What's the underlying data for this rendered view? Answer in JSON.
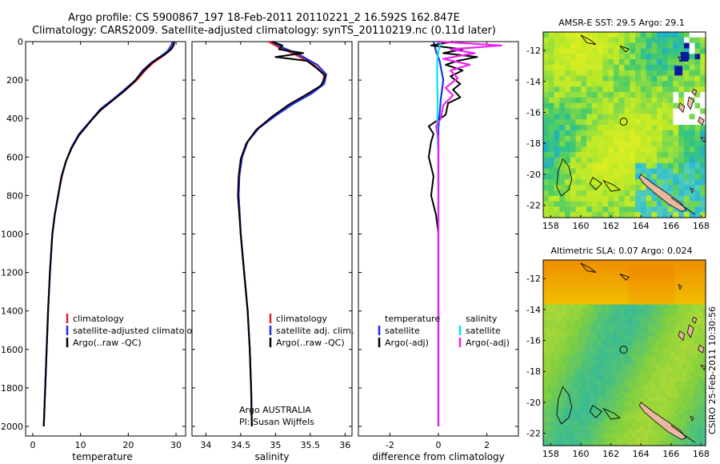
{
  "title": {
    "line1": "Argo profile: CS 5900867_197 18-Feb-2011 20110221_2 16.592S 162.847E",
    "line2": "Climatology: CARS2009. Satellite-adjusted climatology: synTS_20110219.nc (0.11d later)"
  },
  "colors": {
    "climatology": "#e02020",
    "satellite": "#1f2fe0",
    "argo": "#000000",
    "cyan": "#00e5ee",
    "magenta": "#ee22ee",
    "land": "#e8b8a0"
  },
  "chart_data": [
    {
      "type": "line",
      "xlabel": "temperature",
      "ylim": [
        2050,
        0
      ],
      "xlim": [
        -1.5,
        32
      ],
      "xticks": [
        0,
        10,
        20,
        30
      ],
      "yticks": [
        0,
        200,
        400,
        600,
        800,
        1000,
        1200,
        1400,
        1600,
        1800,
        2000
      ],
      "legend_placement": "lower-middle",
      "series": [
        {
          "name": "climatology",
          "color": "#e02020",
          "points": [
            [
              29.5,
              0
            ],
            [
              29.3,
              20
            ],
            [
              28.5,
              50
            ],
            [
              27.0,
              80
            ],
            [
              25.2,
              110
            ],
            [
              23.5,
              150
            ],
            [
              21.8,
              200
            ],
            [
              19.5,
              250
            ],
            [
              17.0,
              300
            ],
            [
              14.5,
              350
            ],
            [
              11.8,
              420
            ],
            [
              9.8,
              480
            ],
            [
              8.2,
              550
            ],
            [
              7.0,
              620
            ],
            [
              6.1,
              700
            ],
            [
              5.3,
              800
            ],
            [
              4.6,
              900
            ],
            [
              4.1,
              1000
            ],
            [
              3.6,
              1200
            ],
            [
              3.2,
              1400
            ],
            [
              2.9,
              1600
            ],
            [
              2.6,
              1800
            ],
            [
              2.3,
              2000
            ]
          ]
        },
        {
          "name": "satellite-adjusted climatology",
          "color": "#1f2fe0",
          "points": [
            [
              29.3,
              0
            ],
            [
              29.0,
              20
            ],
            [
              28.2,
              50
            ],
            [
              26.6,
              80
            ],
            [
              24.8,
              110
            ],
            [
              23.0,
              150
            ],
            [
              21.5,
              200
            ],
            [
              19.2,
              250
            ],
            [
              16.8,
              300
            ],
            [
              14.2,
              350
            ],
            [
              11.8,
              420
            ],
            [
              9.7,
              480
            ],
            [
              8.1,
              550
            ],
            [
              7.0,
              620
            ],
            [
              6.0,
              700
            ],
            [
              5.3,
              800
            ],
            [
              4.6,
              900
            ],
            [
              4.1,
              1000
            ],
            [
              3.6,
              1200
            ],
            [
              3.2,
              1400
            ],
            [
              2.9,
              1600
            ],
            [
              2.6,
              1800
            ],
            [
              2.3,
              2000
            ]
          ]
        },
        {
          "name": "Argo(..raw -QC)",
          "color": "#000000",
          "points": [
            [
              29.6,
              0
            ],
            [
              29.5,
              20
            ],
            [
              29.0,
              40
            ],
            [
              27.5,
              70
            ],
            [
              26.0,
              90
            ],
            [
              24.5,
              120
            ],
            [
              22.9,
              160
            ],
            [
              21.2,
              210
            ],
            [
              19.0,
              260
            ],
            [
              16.5,
              310
            ],
            [
              14.0,
              360
            ],
            [
              11.6,
              430
            ],
            [
              9.6,
              490
            ],
            [
              8.1,
              555
            ],
            [
              6.9,
              625
            ],
            [
              6.0,
              705
            ],
            [
              5.3,
              805
            ],
            [
              4.6,
              905
            ],
            [
              4.1,
              1005
            ],
            [
              3.6,
              1200
            ],
            [
              3.2,
              1400
            ],
            [
              2.9,
              1600
            ],
            [
              2.6,
              1800
            ],
            [
              2.3,
              2000
            ]
          ]
        }
      ]
    },
    {
      "type": "line",
      "xlabel": "salinity",
      "ylim": [
        2050,
        0
      ],
      "xlim": [
        33.8,
        36.1
      ],
      "xticks": [
        34,
        34.5,
        35,
        35.5,
        36
      ],
      "legend_placement": "lower-middle",
      "annotation": [
        "Argo AUSTRALIA",
        "PI: Susan Wijffels"
      ],
      "series": [
        {
          "name": "climatology",
          "color": "#e02020",
          "points": [
            [
              34.9,
              0
            ],
            [
              35.05,
              30
            ],
            [
              35.3,
              70
            ],
            [
              35.55,
              120
            ],
            [
              35.7,
              170
            ],
            [
              35.68,
              220
            ],
            [
              35.5,
              270
            ],
            [
              35.25,
              320
            ],
            [
              35.0,
              380
            ],
            [
              34.75,
              450
            ],
            [
              34.6,
              520
            ],
            [
              34.52,
              600
            ],
            [
              34.48,
              700
            ],
            [
              34.47,
              800
            ],
            [
              34.5,
              1000
            ],
            [
              34.55,
              1200
            ],
            [
              34.6,
              1400
            ],
            [
              34.63,
              1600
            ],
            [
              34.65,
              1800
            ],
            [
              34.66,
              2000
            ]
          ]
        },
        {
          "name": "satellite adj. clim.",
          "color": "#1f2fe0",
          "points": [
            [
              34.95,
              0
            ],
            [
              35.1,
              30
            ],
            [
              35.35,
              70
            ],
            [
              35.6,
              120
            ],
            [
              35.73,
              170
            ],
            [
              35.7,
              220
            ],
            [
              35.52,
              270
            ],
            [
              35.27,
              320
            ],
            [
              35.02,
              380
            ],
            [
              34.76,
              450
            ],
            [
              34.6,
              520
            ],
            [
              34.52,
              600
            ],
            [
              34.48,
              700
            ],
            [
              34.47,
              800
            ],
            [
              34.5,
              1000
            ],
            [
              34.55,
              1200
            ],
            [
              34.6,
              1400
            ],
            [
              34.63,
              1600
            ],
            [
              34.65,
              1800
            ],
            [
              34.66,
              2000
            ]
          ]
        },
        {
          "name": "Argo(..raw -QC)",
          "color": "#000000",
          "points": [
            [
              34.95,
              0
            ],
            [
              35.1,
              20
            ],
            [
              35.05,
              40
            ],
            [
              35.4,
              60
            ],
            [
              35.0,
              80
            ],
            [
              35.45,
              100
            ],
            [
              35.6,
              140
            ],
            [
              35.72,
              180
            ],
            [
              35.65,
              230
            ],
            [
              35.42,
              280
            ],
            [
              35.18,
              330
            ],
            [
              34.95,
              390
            ],
            [
              34.72,
              460
            ],
            [
              34.58,
              530
            ],
            [
              34.5,
              610
            ],
            [
              34.47,
              700
            ],
            [
              34.46,
              800
            ],
            [
              34.5,
              1000
            ],
            [
              34.55,
              1200
            ],
            [
              34.6,
              1400
            ],
            [
              34.63,
              1600
            ],
            [
              34.65,
              1800
            ],
            [
              34.66,
              2000
            ]
          ]
        }
      ]
    },
    {
      "type": "line",
      "xlabel": "difference from climatology",
      "ylim": [
        2050,
        0
      ],
      "xlim": [
        -3.3,
        3.3
      ],
      "xticks": [
        -2,
        0,
        2
      ],
      "legend": {
        "left_header": "temperature",
        "right_header": "salinity"
      },
      "series": [
        {
          "name": "satellite",
          "group": "temperature",
          "color": "#1f2fe0",
          "points": [
            [
              -0.2,
              0
            ],
            [
              -0.1,
              50
            ],
            [
              0.05,
              100
            ],
            [
              0.2,
              200
            ],
            [
              0.1,
              300
            ],
            [
              0.0,
              450
            ],
            [
              0.0,
              600
            ],
            [
              0.0,
              2000
            ]
          ]
        },
        {
          "name": "Argo(-adj)",
          "group": "temperature",
          "color": "#000000",
          "points": [
            [
              0.6,
              0
            ],
            [
              -0.3,
              20
            ],
            [
              1.0,
              40
            ],
            [
              0.2,
              60
            ],
            [
              1.6,
              80
            ],
            [
              0.8,
              100
            ],
            [
              0.3,
              120
            ],
            [
              1.0,
              150
            ],
            [
              0.5,
              180
            ],
            [
              0.9,
              220
            ],
            [
              0.6,
              250
            ],
            [
              0.9,
              290
            ],
            [
              0.4,
              320
            ],
            [
              0.3,
              380
            ],
            [
              -0.4,
              440
            ],
            [
              -0.2,
              480
            ],
            [
              -0.3,
              520
            ],
            [
              -0.4,
              600
            ],
            [
              -0.2,
              700
            ],
            [
              -0.3,
              800
            ],
            [
              -0.1,
              900
            ],
            [
              0.0,
              1000
            ],
            [
              0.0,
              1200
            ]
          ]
        },
        {
          "name": "satellite",
          "group": "salinity",
          "color": "#00e5ee",
          "points": [
            [
              0.1,
              0
            ],
            [
              0.0,
              50
            ],
            [
              -0.05,
              100
            ],
            [
              -0.05,
              200
            ],
            [
              -0.03,
              300
            ],
            [
              -0.05,
              450
            ],
            [
              0.0,
              600
            ],
            [
              0.0,
              2000
            ]
          ]
        },
        {
          "name": "Argo(-adj)",
          "group": "salinity",
          "color": "#ee22ee",
          "points": [
            [
              0.0,
              0
            ],
            [
              2.6,
              20
            ],
            [
              0.5,
              40
            ],
            [
              1.5,
              60
            ],
            [
              0.2,
              90
            ],
            [
              1.3,
              120
            ],
            [
              0.5,
              150
            ],
            [
              0.8,
              190
            ],
            [
              0.3,
              240
            ],
            [
              0.6,
              280
            ],
            [
              0.2,
              330
            ],
            [
              0.1,
              400
            ],
            [
              -0.1,
              440
            ],
            [
              0.0,
              500
            ],
            [
              0.0,
              700
            ],
            [
              0.0,
              1000
            ],
            [
              0.0,
              2000
            ]
          ]
        }
      ]
    },
    {
      "type": "heatmap",
      "title": "AMSR-E SST: 29.5 Argo: 29.1",
      "xlim": [
        157.5,
        168.3
      ],
      "ylim": [
        -22.8,
        -10.8
      ],
      "xticks": [
        158,
        160,
        162,
        164,
        166,
        168
      ],
      "yticks": [
        -12,
        -14,
        -16,
        -18,
        -20,
        -22
      ],
      "marker": {
        "lon": 162.85,
        "lat": -16.6
      }
    },
    {
      "type": "heatmap",
      "title": "Altimetric SLA: 0.07 Argo: 0.024",
      "xlim": [
        157.5,
        168.3
      ],
      "ylim": [
        -22.8,
        -10.8
      ],
      "xticks": [
        158,
        160,
        162,
        164,
        166,
        168
      ],
      "yticks": [
        -12,
        -14,
        -16,
        -18,
        -20,
        -22
      ],
      "marker": {
        "lon": 162.85,
        "lat": -16.6
      }
    }
  ],
  "legend_temp": {
    "l1": "climatology",
    "l2": "satellite-adjusted climatology",
    "l3": "Argo(..raw -QC)"
  },
  "legend_sal": {
    "l1": "climatology",
    "l2": "satellite adj. clim.",
    "l3": "Argo(..raw -QC)"
  },
  "legend_diff": {
    "temp_header": "temperature",
    "sal_header": "salinity",
    "t1": "satellite",
    "t2": "Argo(-adj)",
    "s1": "satellite",
    "s2": "Argo(-adj)"
  },
  "annotation": {
    "line1": "Argo AUSTRALIA",
    "line2": "PI: Susan Wijffels"
  },
  "side_label": "CSIRO 25-Feb-2011 10:30:56"
}
